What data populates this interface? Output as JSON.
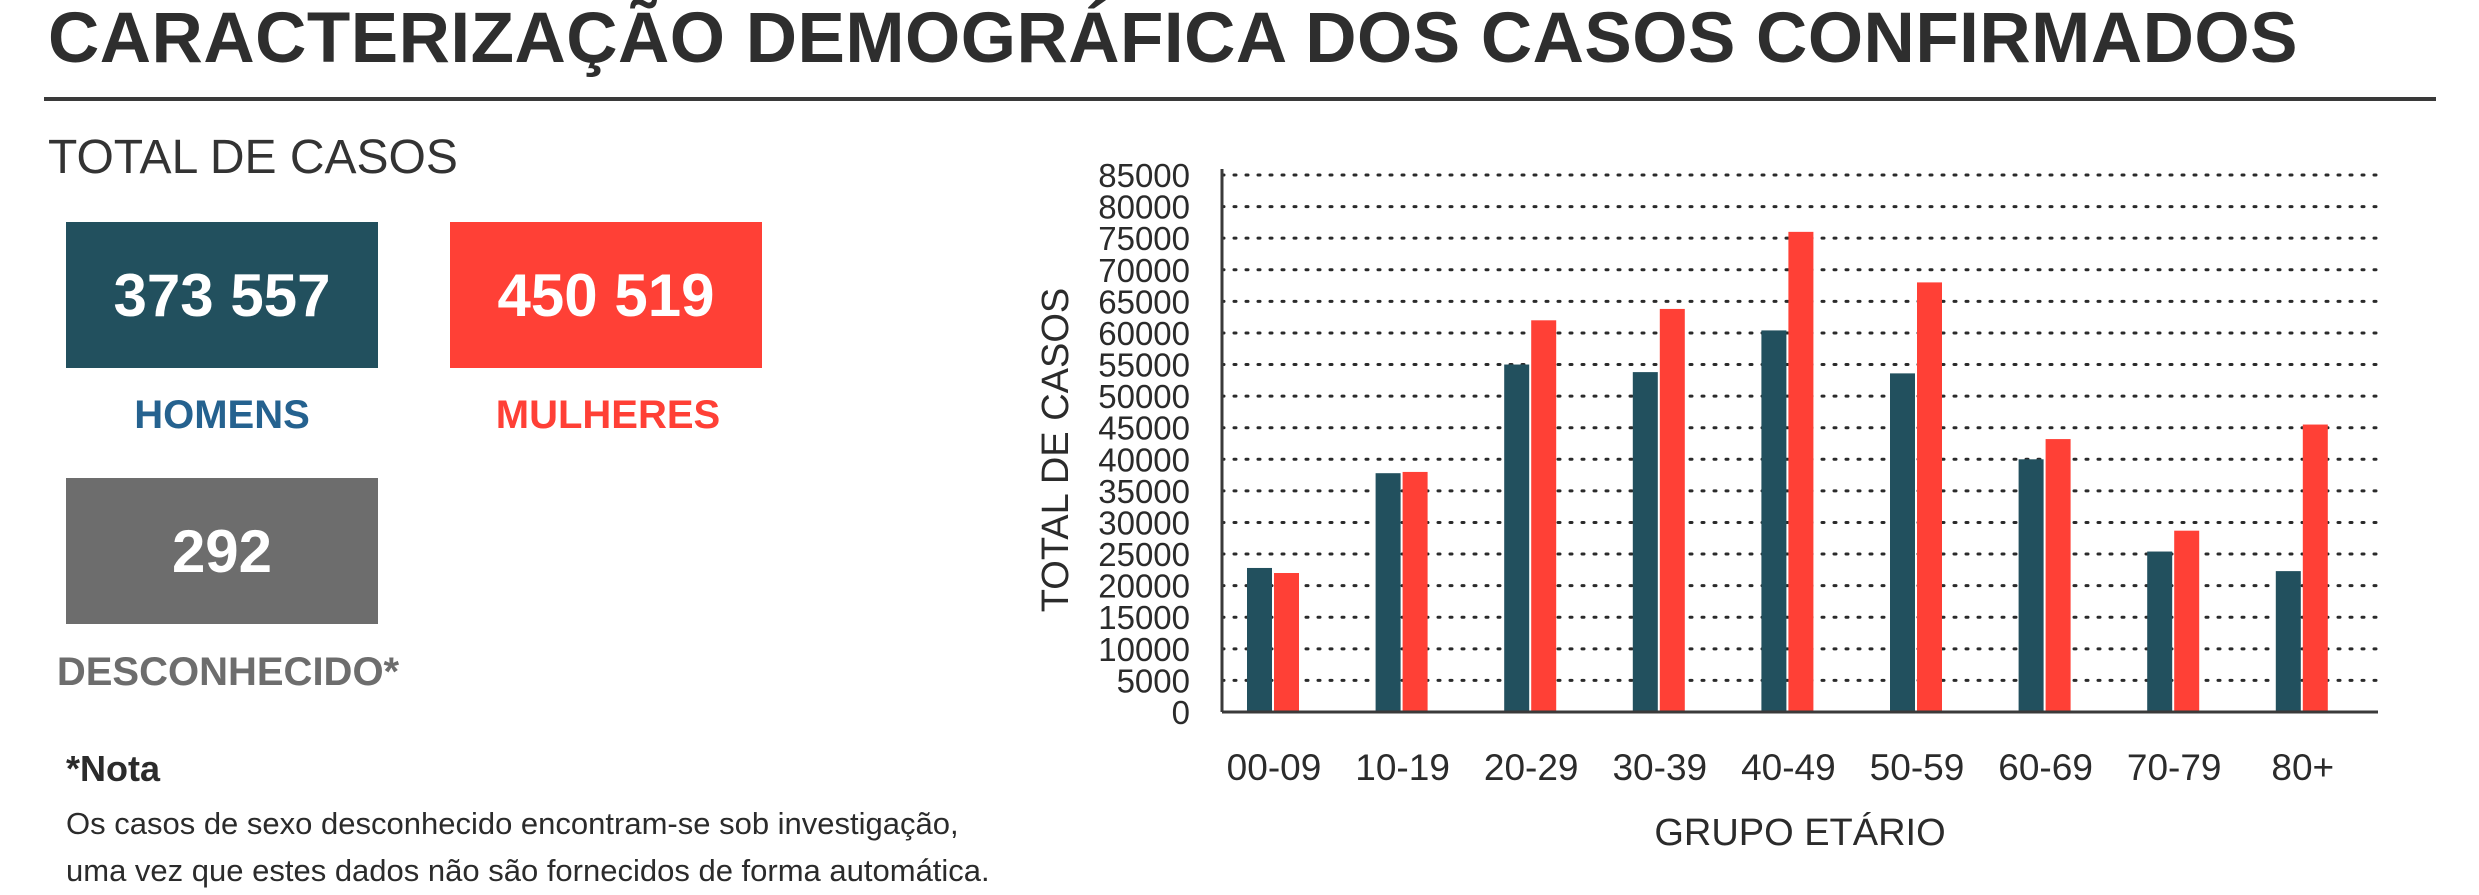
{
  "page": {
    "title": "CARACTERIZAÇÃO DEMOGRÁFICA DOS CASOS CONFIRMADOS",
    "total_label": "TOTAL DE CASOS"
  },
  "stats": {
    "men": {
      "value": "373 557",
      "label": "HOMENS",
      "color": "#22505e",
      "label_color": "#25628f"
    },
    "women": {
      "value": "450 519",
      "label": "MULHERES",
      "color": "#ff4036",
      "label_color": "#ff4036"
    },
    "unknown": {
      "value": "292",
      "label": "DESCONHECIDO*",
      "color": "#6d6d6d",
      "label_color": "#6d6d6d"
    }
  },
  "note": {
    "title": "*Nota",
    "line1": "Os casos de sexo desconhecido encontram-se sob investigação,",
    "line2": "uma vez que estes dados não são fornecidos de forma automática."
  },
  "chart_data": {
    "type": "bar",
    "xlabel": "GRUPO ETÁRIO",
    "ylabel": "TOTAL DE CASOS",
    "ylim": [
      0,
      85000
    ],
    "ytick_step": 5000,
    "grid": "horizontal dotted",
    "legend": "none",
    "categories": [
      "00-09",
      "10-19",
      "20-29",
      "30-39",
      "40-49",
      "50-59",
      "60-69",
      "70-79",
      "80+"
    ],
    "series": [
      {
        "values": [
          22800,
          37800,
          55000,
          53800,
          60400,
          53600,
          40000,
          25400,
          22300
        ],
        "color": "#22505e"
      },
      {
        "values": [
          22000,
          38000,
          62000,
          63800,
          76000,
          68000,
          43200,
          28700,
          45500
        ],
        "color": "#ff4036"
      }
    ]
  }
}
